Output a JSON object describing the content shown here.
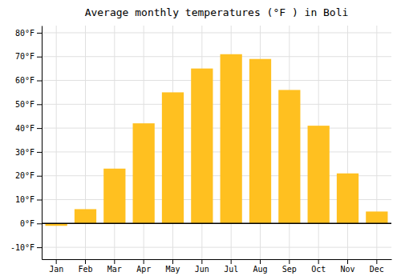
{
  "chart_data": {
    "type": "bar",
    "title": "Average monthly temperatures (°F ) in Boli",
    "categories": [
      "Jan",
      "Feb",
      "Mar",
      "Apr",
      "May",
      "Jun",
      "Jul",
      "Aug",
      "Sep",
      "Oct",
      "Nov",
      "Dec"
    ],
    "values": [
      -1,
      6,
      23,
      42,
      55,
      65,
      71,
      69,
      56,
      41,
      21,
      5
    ],
    "color": "#FFC020",
    "ylim": [
      -15,
      83
    ],
    "yticks": [
      {
        "value": -10,
        "label": "-10°F"
      },
      {
        "value": 0,
        "label": "0°F"
      },
      {
        "value": 10,
        "label": "10°F"
      },
      {
        "value": 20,
        "label": "20°F"
      },
      {
        "value": 30,
        "label": "30°F"
      },
      {
        "value": 40,
        "label": "40°F"
      },
      {
        "value": 50,
        "label": "50°F"
      },
      {
        "value": 60,
        "label": "60°F"
      },
      {
        "value": 70,
        "label": "70°F"
      },
      {
        "value": 80,
        "label": "80°F"
      }
    ],
    "grid": true
  }
}
